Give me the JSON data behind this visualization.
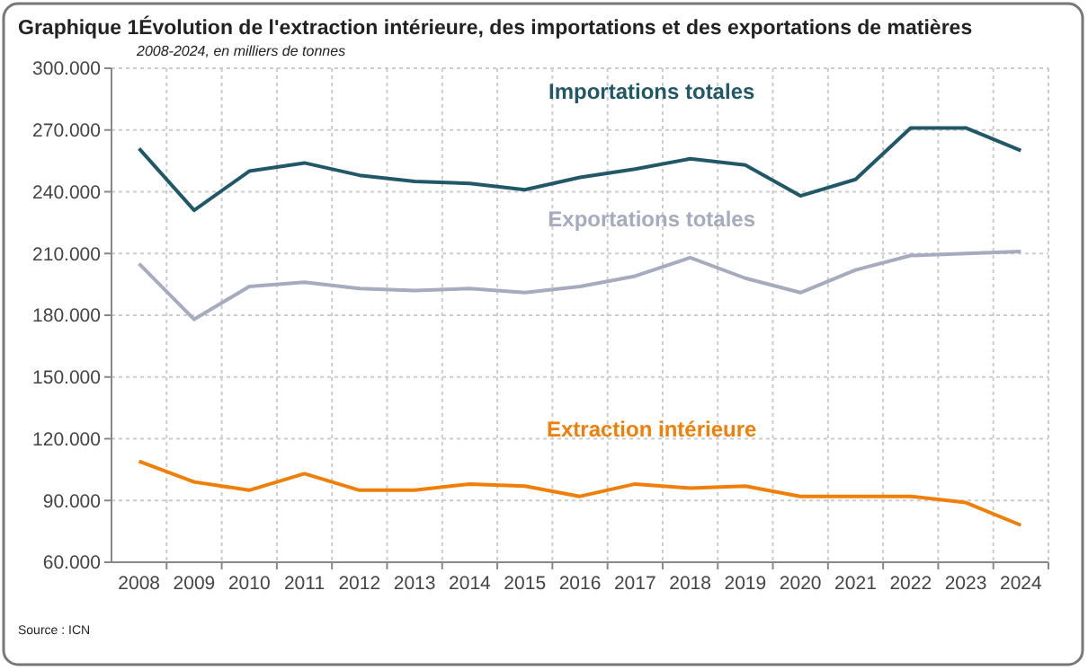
{
  "chart_data": {
    "type": "line",
    "title": "Graphique 1Évolution de l'extraction intérieure, des importations et des exportations de matières",
    "subtitle": "2008-2024, en milliers de tonnes",
    "annotations": [
      "Source : ICN"
    ],
    "categories": [
      "2008",
      "2009",
      "2010",
      "2011",
      "2012",
      "2013",
      "2014",
      "2015",
      "2016",
      "2017",
      "2018",
      "2019",
      "2020",
      "2021",
      "2022",
      "2023",
      "2024"
    ],
    "series": [
      {
        "name": "Importations totales",
        "color": "#215868",
        "values": [
          261000,
          231000,
          250000,
          254000,
          248000,
          245000,
          244000,
          241000,
          247000,
          251000,
          256000,
          253000,
          238000,
          246000,
          271000,
          271000,
          260000
        ]
      },
      {
        "name": "Exportations totales",
        "color": "#a6abbd",
        "values": [
          205000,
          178000,
          194000,
          196000,
          193000,
          192000,
          193000,
          191000,
          194000,
          199000,
          208000,
          198000,
          191000,
          202000,
          209000,
          210000,
          211000
        ]
      },
      {
        "name": "Extraction intérieure",
        "color": "#f07f09",
        "values": [
          109000,
          99000,
          95000,
          103000,
          95000,
          95000,
          98000,
          97000,
          92000,
          98000,
          96000,
          97000,
          92000,
          92000,
          92000,
          89000,
          78000
        ]
      }
    ],
    "ylim": [
      60000,
      300000
    ],
    "yticks": [
      {
        "value": 60000,
        "label": "60.000"
      },
      {
        "value": 90000,
        "label": "90.000"
      },
      {
        "value": 120000,
        "label": "120.000"
      },
      {
        "value": 150000,
        "label": "150.000"
      },
      {
        "value": 180000,
        "label": "180.000"
      },
      {
        "value": 210000,
        "label": "210.000"
      },
      {
        "value": 240000,
        "label": "240.000"
      },
      {
        "value": 270000,
        "label": "270.000"
      },
      {
        "value": 300000,
        "label": "300.000"
      }
    ],
    "grid": true,
    "legend": false,
    "marker": "none",
    "line_style": "solid"
  }
}
